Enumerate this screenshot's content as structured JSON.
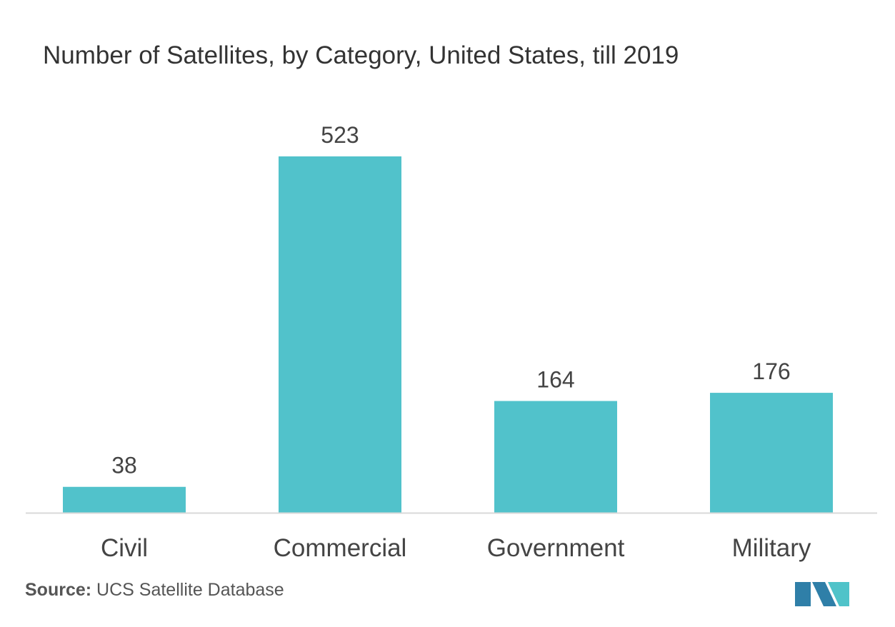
{
  "chart_data": {
    "type": "bar",
    "title": "Number of Satellites, by Category, United States, till 2019",
    "categories": [
      "Civil",
      "Commercial",
      "Government",
      "Military"
    ],
    "values": [
      38,
      523,
      164,
      176
    ],
    "data_labels": [
      "38",
      "523",
      "164",
      "176"
    ],
    "xlabel": "",
    "ylabel": "",
    "ylim": [
      0,
      523
    ],
    "grid": false,
    "legend": "none",
    "bar_color": "#51C2CB",
    "axis_color": "#D9D9D9",
    "label_color": "#444444"
  },
  "source": {
    "label": "Source:",
    "text": "UCS Satellite Database"
  },
  "logo": {
    "icon": "mordor-intelligence-logo",
    "colors": [
      "#2F7FA8",
      "#4FC3C9"
    ]
  }
}
